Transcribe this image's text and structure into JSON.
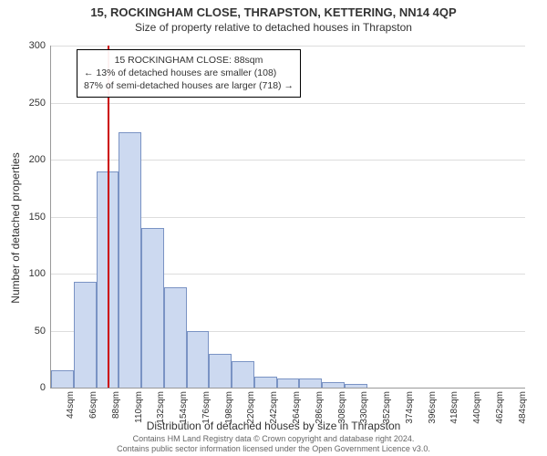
{
  "title": "15, ROCKINGHAM CLOSE, THRAPSTON, KETTERING, NN14 4QP",
  "subtitle": "Size of property relative to detached houses in Thrapston",
  "ylabel": "Number of detached properties",
  "xlabel": "Distribution of detached houses by size in Thrapston",
  "footer_line1": "Contains HM Land Registry data © Crown copyright and database right 2024.",
  "footer_line2": "Contains public sector information licensed under the Open Government Licence v3.0.",
  "info": {
    "line1": "15 ROCKINGHAM CLOSE: 88sqm",
    "line2": "← 13% of detached houses are smaller (108)",
    "line3": "87% of semi-detached houses are larger (718) →"
  },
  "chart": {
    "type": "histogram",
    "bar_fill": "#ccd9f0",
    "bar_stroke": "#7a93c4",
    "background_color": "#ffffff",
    "grid_color": "#dddddd",
    "axis_color": "#999999",
    "marker_color": "#cc0000",
    "marker_value": 88,
    "ylim": [
      0,
      300
    ],
    "ytick_step": 50,
    "yticks": [
      0,
      50,
      100,
      150,
      200,
      250,
      300
    ],
    "xticks": [
      "44sqm",
      "66sqm",
      "88sqm",
      "110sqm",
      "132sqm",
      "154sqm",
      "176sqm",
      "198sqm",
      "220sqm",
      "242sqm",
      "264sqm",
      "286sqm",
      "308sqm",
      "330sqm",
      "352sqm",
      "374sqm",
      "396sqm",
      "418sqm",
      "440sqm",
      "462sqm",
      "484sqm"
    ],
    "bin_width": 22,
    "bins": [
      {
        "start": 33,
        "value": 15
      },
      {
        "start": 55,
        "value": 93
      },
      {
        "start": 77,
        "value": 190
      },
      {
        "start": 99,
        "value": 224
      },
      {
        "start": 121,
        "value": 140
      },
      {
        "start": 143,
        "value": 88
      },
      {
        "start": 165,
        "value": 50
      },
      {
        "start": 187,
        "value": 30
      },
      {
        "start": 209,
        "value": 23
      },
      {
        "start": 231,
        "value": 10
      },
      {
        "start": 253,
        "value": 8
      },
      {
        "start": 275,
        "value": 8
      },
      {
        "start": 297,
        "value": 5
      },
      {
        "start": 319,
        "value": 3
      },
      {
        "start": 341,
        "value": 0
      },
      {
        "start": 363,
        "value": 0
      },
      {
        "start": 385,
        "value": 0
      },
      {
        "start": 407,
        "value": 0
      },
      {
        "start": 429,
        "value": 0
      },
      {
        "start": 451,
        "value": 0
      },
      {
        "start": 473,
        "value": 0
      }
    ],
    "x_domain": [
      33,
      495
    ],
    "title_fontsize": 13,
    "label_fontsize": 12,
    "tick_fontsize": 11
  }
}
